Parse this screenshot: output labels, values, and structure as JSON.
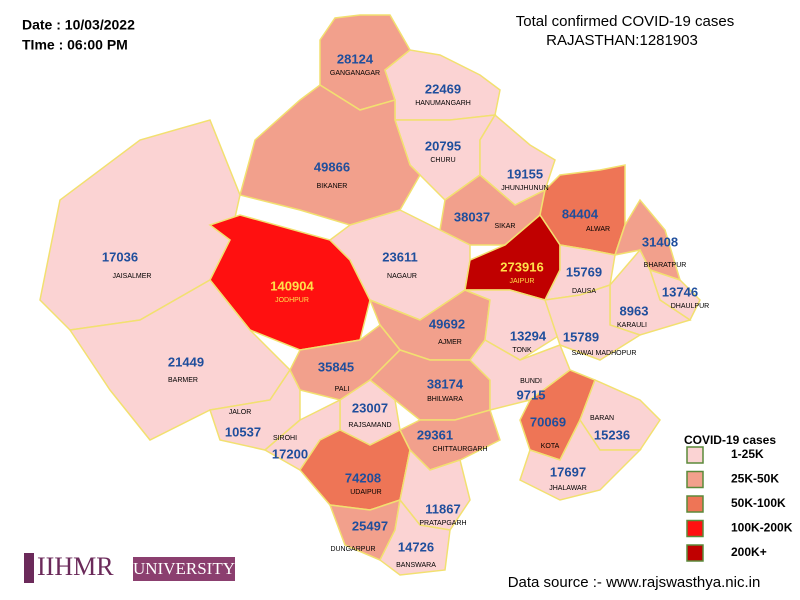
{
  "header": {
    "date": "Date : 10/03/2022",
    "time": "TIme : 06:00 PM",
    "title": "Total confirmed COVID-19 cases",
    "subtitle": "RAJASTHAN:1281903"
  },
  "legend": {
    "title": "COVID-19 cases",
    "items": [
      {
        "label": "1-25K",
        "color": "#fbd3d3"
      },
      {
        "label": "25K-50K",
        "color": "#f2a08c"
      },
      {
        "label": "50K-100K",
        "color": "#ee7556"
      },
      {
        "label": "100K-200K",
        "color": "#ff1010"
      },
      {
        "label": "200K+",
        "color": "#c00000"
      }
    ]
  },
  "districts": [
    {
      "name": "GANGANAGAR",
      "cases": 28124,
      "color": "#f2a08c"
    },
    {
      "name": "HANUMANGARH",
      "cases": 22469,
      "color": "#fbd3d3"
    },
    {
      "name": "CHURU",
      "cases": 20795,
      "color": "#fbd3d3"
    },
    {
      "name": "BIKANER",
      "cases": 49866,
      "color": "#f2a08c"
    },
    {
      "name": "JHUNJHUNUN",
      "cases": 19155,
      "color": "#fbd3d3"
    },
    {
      "name": "SIKAR",
      "cases": 38037,
      "color": "#f2a08c"
    },
    {
      "name": "ALWAR",
      "cases": 84404,
      "color": "#ee7556"
    },
    {
      "name": "BHARATPUR",
      "cases": 31408,
      "color": "#f2a08c"
    },
    {
      "name": "JAISALMER",
      "cases": 17036,
      "color": "#fbd3d3"
    },
    {
      "name": "JODHPUR",
      "cases": 140904,
      "color": "#ff1010"
    },
    {
      "name": "NAGAUR",
      "cases": 23611,
      "color": "#fbd3d3"
    },
    {
      "name": "JAIPUR",
      "cases": 273916,
      "color": "#c00000"
    },
    {
      "name": "DAUSA",
      "cases": 15769,
      "color": "#fbd3d3"
    },
    {
      "name": "DHAULPUR",
      "cases": 13746,
      "color": "#fbd3d3"
    },
    {
      "name": "KARAULI",
      "cases": 8963,
      "color": "#fbd3d3"
    },
    {
      "name": "AJMER",
      "cases": 49692,
      "color": "#f2a08c"
    },
    {
      "name": "TONK",
      "cases": 13294,
      "color": "#fbd3d3"
    },
    {
      "name": "SAWAI MADHOPUR",
      "cases": 15789,
      "color": "#fbd3d3"
    },
    {
      "name": "BARMER",
      "cases": 21449,
      "color": "#fbd3d3"
    },
    {
      "name": "PALI",
      "cases": 35845,
      "color": "#f2a08c"
    },
    {
      "name": "BHILWARA",
      "cases": 38174,
      "color": "#f2a08c"
    },
    {
      "name": "BUNDI",
      "cases": 9715,
      "color": "#fbd3d3"
    },
    {
      "name": "JALOR",
      "cases": 10537,
      "color": "#fbd3d3"
    },
    {
      "name": "RAJSAMAND",
      "cases": 23007,
      "color": "#fbd3d3"
    },
    {
      "name": "CHITTAURGARH",
      "cases": 29361,
      "color": "#f2a08c"
    },
    {
      "name": "KOTA",
      "cases": 70069,
      "color": "#ee7556"
    },
    {
      "name": "BARAN",
      "cases": 15236,
      "color": "#fbd3d3"
    },
    {
      "name": "SIROHI",
      "cases": 17200,
      "color": "#fbd3d3"
    },
    {
      "name": "UDAIPUR",
      "cases": 74208,
      "color": "#ee7556"
    },
    {
      "name": "JHALAWAR",
      "cases": 17697,
      "color": "#fbd3d3"
    },
    {
      "name": "PRATAPGARH",
      "cases": 11867,
      "color": "#fbd3d3"
    },
    {
      "name": "DUNGARPUR",
      "cases": 25497,
      "color": "#f2a08c"
    },
    {
      "name": "BANSWARA",
      "cases": 14726,
      "color": "#fbd3d3"
    }
  ],
  "logo": {
    "main": "IIHMR",
    "sub": "UNIVERSITY"
  },
  "source": "Data source :- www.rajswasthya.nic.in"
}
